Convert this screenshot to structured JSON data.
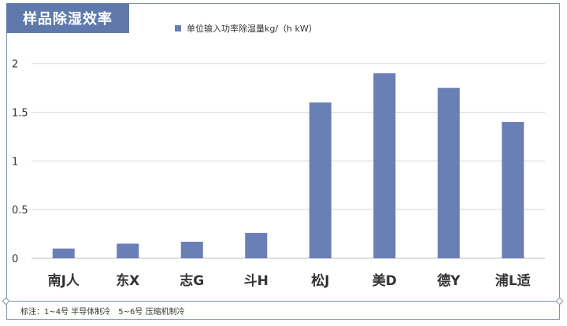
{
  "title": "样品除湿效率",
  "note": "标注：1~4号 半导体制冷　5~6号 压缩机制冷",
  "colors": {
    "bar": "#6a7fb6",
    "title_bg": "#5f79ad",
    "frame": "#7f93b3",
    "grid": "#d9d9d9"
  },
  "chart_data": {
    "type": "bar",
    "categories": [
      "南J人",
      "东X",
      "志G",
      "斗H",
      "松J",
      "美D",
      "德Y",
      "浦L适"
    ],
    "series": [
      {
        "name": "单位输入功率除湿量kg/（h kW）",
        "values": [
          0.1,
          0.15,
          0.17,
          0.26,
          1.6,
          1.9,
          1.75,
          1.4
        ]
      }
    ],
    "ylim": [
      0,
      2.2
    ],
    "yticks": [
      "0",
      "0.5",
      "1",
      "1.5",
      "2"
    ],
    "ytick_values": [
      0,
      0.5,
      1,
      1.5,
      2
    ],
    "grid": true,
    "legend": "top-left"
  }
}
